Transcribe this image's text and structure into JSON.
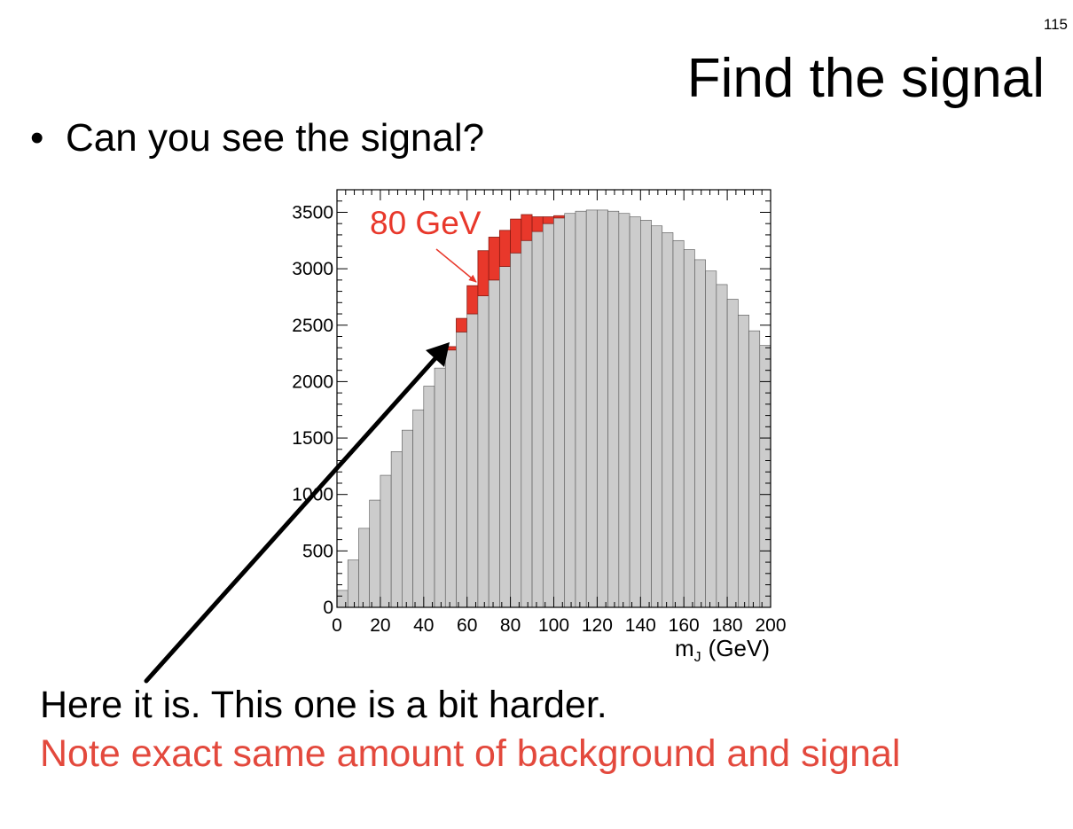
{
  "slide": {
    "page_number": "115",
    "title": "Find the signal",
    "bullet_symbol": "•",
    "bullet": "Can you see the signal?",
    "caption_1": "Here it is. This one is a bit harder.",
    "caption_2": "Note exact same amount of background and signal"
  },
  "colors": {
    "background_fill": "#cccccc",
    "background_line": "#555555",
    "signal": "#e8382b",
    "signal_edge": "#8b1a12",
    "note_text": "#e3493d",
    "arrow": "#000000"
  },
  "chart_data": {
    "type": "bar",
    "style": "stacked histogram",
    "xlabel_main": "m",
    "xlabel_sub": "J",
    "xlabel_unit": "(GeV)",
    "ylabel": "",
    "xlim": [
      0,
      200
    ],
    "ylim": [
      0,
      3700
    ],
    "x_ticks": [
      0,
      20,
      40,
      60,
      80,
      100,
      120,
      140,
      160,
      180,
      200
    ],
    "x_tick_labels": [
      "0",
      "20",
      "40",
      "60",
      "80",
      "100",
      "120",
      "140",
      "160",
      "180",
      "200"
    ],
    "y_ticks": [
      0,
      500,
      1000,
      1500,
      2000,
      2500,
      3000,
      3500
    ],
    "y_tick_labels": [
      "0",
      "500",
      "1000",
      "1500",
      "2000",
      "2500",
      "3000",
      "3500"
    ],
    "annotation": {
      "text": "80 GeV",
      "points_to": [
        65,
        3000
      ]
    },
    "bin_width": 5,
    "bin_centers": [
      2.5,
      7.5,
      12.5,
      17.5,
      22.5,
      27.5,
      32.5,
      37.5,
      42.5,
      47.5,
      52.5,
      57.5,
      62.5,
      67.5,
      72.5,
      77.5,
      82.5,
      87.5,
      92.5,
      97.5,
      102.5,
      107.5,
      112.5,
      117.5,
      122.5,
      127.5,
      132.5,
      137.5,
      142.5,
      147.5,
      152.5,
      157.5,
      162.5,
      167.5,
      172.5,
      177.5,
      182.5,
      187.5,
      192.5,
      197.5
    ],
    "series": [
      {
        "name": "background",
        "values": [
          150,
          420,
          700,
          950,
          1170,
          1380,
          1570,
          1750,
          1960,
          2120,
          2280,
          2440,
          2600,
          2760,
          2900,
          3020,
          3140,
          3250,
          3330,
          3400,
          3450,
          3490,
          3510,
          3520,
          3520,
          3510,
          3490,
          3460,
          3430,
          3380,
          3320,
          3250,
          3170,
          3080,
          2980,
          2860,
          2730,
          2590,
          2450,
          2320
        ]
      },
      {
        "name": "signal",
        "values": [
          0,
          0,
          0,
          0,
          0,
          0,
          0,
          0,
          0,
          0,
          30,
          120,
          250,
          400,
          380,
          320,
          300,
          230,
          130,
          60,
          20,
          0,
          0,
          0,
          0,
          0,
          0,
          0,
          0,
          0,
          0,
          0,
          0,
          0,
          0,
          0,
          0,
          0,
          0,
          0
        ]
      }
    ]
  }
}
